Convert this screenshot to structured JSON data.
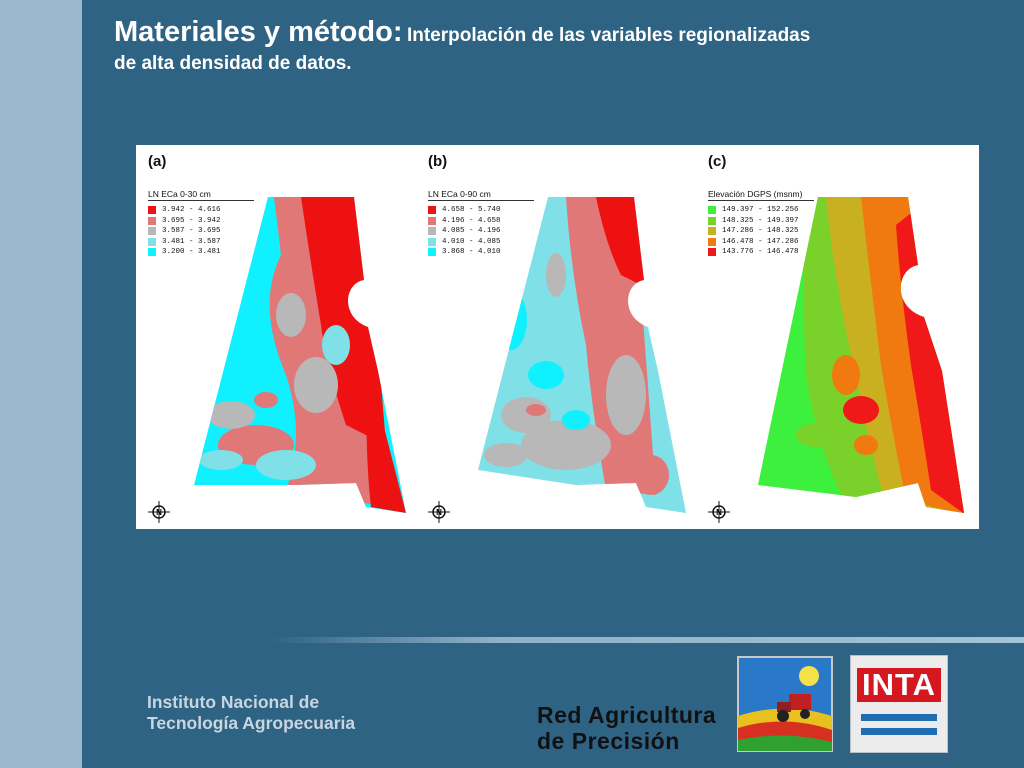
{
  "slide": {
    "title_bold": "Materiales y método:",
    "title_rest": "Interpolación de las variables regionalizadas",
    "title_line2": "de alta densidad de datos."
  },
  "colors": {
    "background": "#2f6383",
    "left_band": "#9ab8d0",
    "red": "#ee1111",
    "salmon": "#e07878",
    "gray": "#b8b8b8",
    "light_cyan": "#7fe0e8",
    "cyan": "#10f0ff",
    "green_bright": "#3ef03e",
    "green_mid": "#7ad12a",
    "olive": "#c8b020",
    "orange": "#f07a10",
    "red_elev": "#f01818"
  },
  "panels": [
    {
      "label": "(a)",
      "legend_title": "LN ECa 0-30 cm",
      "legend": [
        {
          "range": "3.942 - 4.616",
          "color": "#ee1111"
        },
        {
          "range": "3.695 - 3.942",
          "color": "#e07878"
        },
        {
          "range": "3.587 - 3.695",
          "color": "#b8b8b8"
        },
        {
          "range": "3.481 - 3.587",
          "color": "#7fe0e8"
        },
        {
          "range": "3.200 - 3.481",
          "color": "#10f0ff"
        }
      ]
    },
    {
      "label": "(b)",
      "legend_title": "LN ECa 0-90 cm",
      "legend": [
        {
          "range": "4.658 - 5.740",
          "color": "#ee1111"
        },
        {
          "range": "4.196 - 4.658",
          "color": "#e07878"
        },
        {
          "range": "4.085 - 4.196",
          "color": "#b8b8b8"
        },
        {
          "range": "4.010 - 4.085",
          "color": "#7fe0e8"
        },
        {
          "range": "3.868 - 4.010",
          "color": "#10f0ff"
        }
      ]
    },
    {
      "label": "(c)",
      "legend_title": "Elevación DGPS (msnm)",
      "legend": [
        {
          "range": "149.397 - 152.256",
          "color": "#3ef03e"
        },
        {
          "range": "148.325 - 149.397",
          "color": "#7ad12a"
        },
        {
          "range": "147.286 - 148.325",
          "color": "#c8b020"
        },
        {
          "range": "146.478 - 147.286",
          "color": "#f07a10"
        },
        {
          "range": "143.776 - 146.478",
          "color": "#f01818"
        }
      ]
    }
  ],
  "north_label": "N",
  "footer": {
    "institute_line1": "Instituto Nacional de",
    "institute_line2": "Tecnología Agropecuaria",
    "rap_line1": "Red Agricultura",
    "rap_line2": "de Precisión",
    "inta_logo_text": "INTA"
  }
}
